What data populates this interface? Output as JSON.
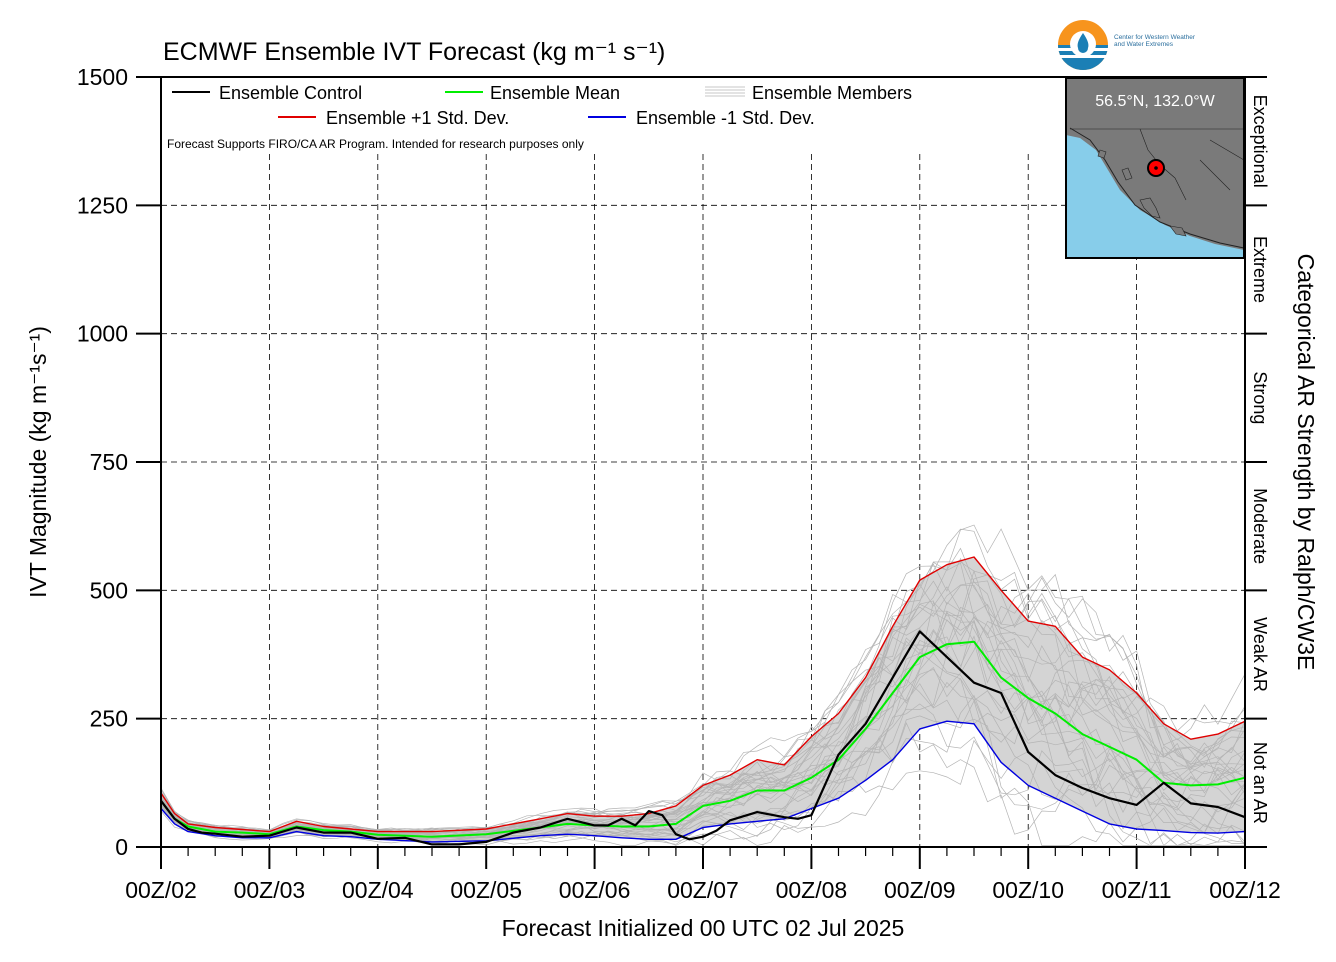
{
  "chart_data": {
    "type": "line",
    "title": "ECMWF Ensemble IVT Forecast (kg m⁻¹ s⁻¹)",
    "xlabel": "Forecast Initialized 00 UTC 02 Jul 2025",
    "ylabel": "IVT Magnitude (kg m⁻¹s⁻¹)",
    "right_label": "Categorical AR Strength by Ralph/CW3E",
    "ylim": [
      0,
      1500
    ],
    "yticks": [
      "0",
      "250",
      "500",
      "750",
      "1000",
      "1250",
      "1500"
    ],
    "xticks": [
      "00Z/02",
      "00Z/03",
      "00Z/04",
      "00Z/05",
      "00Z/06",
      "00Z/07",
      "00Z/08",
      "00Z/09",
      "00Z/10",
      "00Z/11",
      "00Z/12"
    ],
    "x_unit": "days after 00Z/02",
    "grid": true,
    "note": "Forecast Supports FIRO/CA AR Program. Intended for research purposes only",
    "categories_ar": [
      {
        "label": "Not an AR",
        "range": [
          0,
          250
        ]
      },
      {
        "label": "Weak AR",
        "range": [
          250,
          500
        ]
      },
      {
        "label": "Moderate",
        "range": [
          500,
          750
        ]
      },
      {
        "label": "Strong",
        "range": [
          750,
          1000
        ]
      },
      {
        "label": "Extreme",
        "range": [
          1000,
          1250
        ]
      },
      {
        "label": "Exceptional",
        "range": [
          1250,
          1500
        ]
      }
    ],
    "legend": [
      {
        "name": "Ensemble Control",
        "color": "#000000"
      },
      {
        "name": "Ensemble Mean",
        "color": "#00ee00"
      },
      {
        "name": "Ensemble Members",
        "color": "#b4b4b4"
      },
      {
        "name": "Ensemble +1 Std. Dev.",
        "color": "#e00000"
      },
      {
        "name": "Ensemble -1 Std. Dev.",
        "color": "#0000e0"
      }
    ],
    "inset": {
      "location_label": "56.5°N, 132.0°W"
    },
    "series": [
      {
        "name": "Ensemble Control",
        "color": "#000000",
        "width": 2.2,
        "x": [
          0,
          0.125,
          0.25,
          0.375,
          0.5,
          0.75,
          1.0,
          1.25,
          1.5,
          1.75,
          2.0,
          2.25,
          2.5,
          2.75,
          3.0,
          3.25,
          3.5,
          3.75,
          4.0,
          4.125,
          4.25,
          4.375,
          4.5,
          4.625,
          4.75,
          4.875,
          5.0,
          5.125,
          5.25,
          5.5,
          5.75,
          5.875,
          6.0,
          6.25,
          6.5,
          6.75,
          7.0,
          7.25,
          7.5,
          7.75,
          8.0,
          8.25,
          8.5,
          8.75,
          9.0,
          9.25,
          9.5,
          9.75,
          10.0
        ],
        "y": [
          90,
          55,
          35,
          28,
          26,
          20,
          22,
          38,
          28,
          28,
          16,
          18,
          5,
          5,
          10,
          28,
          38,
          55,
          42,
          42,
          55,
          42,
          70,
          62,
          25,
          15,
          20,
          32,
          52,
          68,
          58,
          55,
          62,
          180,
          240,
          330,
          420,
          370,
          320,
          300,
          185,
          140,
          115,
          95,
          82,
          125,
          85,
          78,
          58
        ]
      },
      {
        "name": "Ensemble Mean",
        "color": "#00ee00",
        "width": 2,
        "x": [
          0,
          0.125,
          0.25,
          0.5,
          0.75,
          1.0,
          1.25,
          1.5,
          1.75,
          2.0,
          2.5,
          3.0,
          3.5,
          3.75,
          4.0,
          4.25,
          4.5,
          4.75,
          5.0,
          5.25,
          5.5,
          5.75,
          6.0,
          6.25,
          6.5,
          6.75,
          7.0,
          7.25,
          7.5,
          7.75,
          8.0,
          8.25,
          8.5,
          8.75,
          9.0,
          9.25,
          9.5,
          9.75,
          10.0
        ],
        "y": [
          90,
          55,
          40,
          30,
          28,
          25,
          40,
          33,
          30,
          24,
          20,
          25,
          38,
          45,
          42,
          40,
          40,
          45,
          80,
          90,
          110,
          110,
          135,
          170,
          230,
          300,
          370,
          395,
          400,
          330,
          290,
          260,
          220,
          195,
          170,
          125,
          120,
          122,
          135
        ]
      },
      {
        "name": "Ensemble +1 Std. Dev.",
        "color": "#e00000",
        "width": 1.4,
        "x": [
          0,
          0.125,
          0.25,
          0.5,
          0.75,
          1.0,
          1.25,
          1.5,
          1.75,
          2.0,
          2.5,
          3.0,
          3.5,
          3.75,
          4.0,
          4.25,
          4.5,
          4.75,
          5.0,
          5.25,
          5.5,
          5.75,
          6.0,
          6.25,
          6.5,
          6.75,
          7.0,
          7.25,
          7.5,
          7.75,
          8.0,
          8.25,
          8.5,
          8.75,
          9.0,
          9.25,
          9.5,
          9.75,
          10.0
        ],
        "y": [
          105,
          65,
          45,
          38,
          34,
          30,
          50,
          40,
          35,
          30,
          30,
          35,
          55,
          65,
          60,
          60,
          65,
          80,
          120,
          140,
          170,
          160,
          215,
          260,
          330,
          430,
          520,
          550,
          565,
          500,
          440,
          430,
          370,
          345,
          300,
          240,
          210,
          220,
          245
        ]
      },
      {
        "name": "Ensemble -1 Std. Dev.",
        "color": "#0000e0",
        "width": 1.4,
        "x": [
          0,
          0.125,
          0.25,
          0.5,
          0.75,
          1.0,
          1.25,
          1.5,
          1.75,
          2.0,
          2.5,
          3.0,
          3.5,
          3.75,
          4.0,
          4.25,
          4.5,
          4.75,
          5.0,
          5.25,
          5.5,
          5.75,
          6.0,
          6.25,
          6.5,
          6.75,
          7.0,
          7.25,
          7.5,
          7.75,
          8.0,
          8.25,
          8.5,
          8.75,
          9.0,
          9.25,
          9.5,
          9.75,
          10.0
        ],
        "y": [
          75,
          45,
          30,
          22,
          18,
          18,
          30,
          22,
          20,
          15,
          10,
          12,
          22,
          25,
          22,
          18,
          15,
          15,
          38,
          45,
          50,
          55,
          75,
          95,
          130,
          170,
          230,
          245,
          240,
          165,
          120,
          95,
          70,
          45,
          35,
          32,
          28,
          27,
          30
        ]
      }
    ]
  }
}
